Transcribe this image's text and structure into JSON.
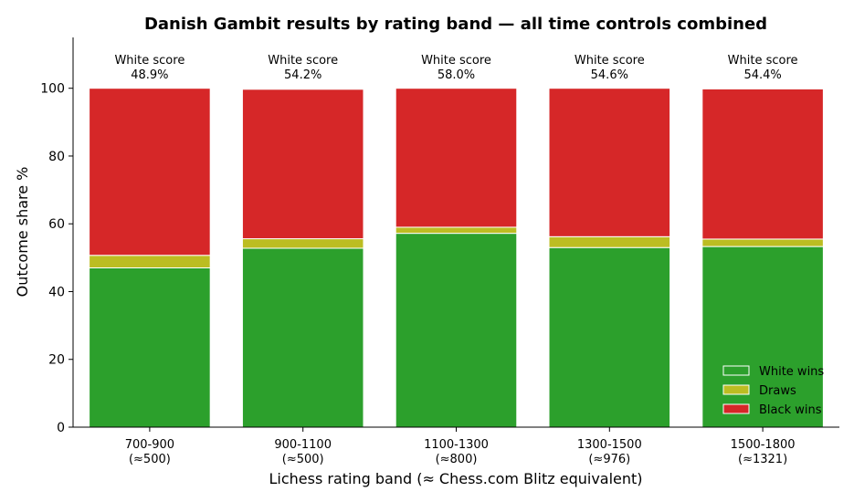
{
  "chart_data": {
    "type": "bar",
    "stacked": true,
    "title": "Danish Gambit results by rating band — all time controls combined",
    "xlabel": "Lichess rating band  (≈ Chess.com Blitz equivalent)",
    "ylabel": "Outcome share %",
    "ylim": [
      0,
      115
    ],
    "yticks": [
      0,
      20,
      40,
      60,
      80,
      100
    ],
    "grid": false,
    "legend_position": "bottom-right",
    "categories": [
      {
        "band": "700-900",
        "equiv": "(≈500)"
      },
      {
        "band": "900-1100",
        "equiv": "(≈500)"
      },
      {
        "band": "1100-1300",
        "equiv": "(≈800)"
      },
      {
        "band": "1300-1500",
        "equiv": "(≈976)"
      },
      {
        "band": "1500-1800",
        "equiv": "(≈1321)"
      }
    ],
    "series": [
      {
        "name": "White wins",
        "color": "#2ca02c",
        "values": [
          47.0,
          52.8,
          57.2,
          53.0,
          53.3
        ]
      },
      {
        "name": "Draws",
        "color": "#bcbd22",
        "values": [
          3.7,
          2.8,
          1.8,
          3.2,
          2.2
        ]
      },
      {
        "name": "Black wins",
        "color": "#d62728",
        "values": [
          49.3,
          44.1,
          41.0,
          43.8,
          44.3
        ]
      }
    ],
    "annotations": [
      {
        "label": "White score",
        "value": "48.9%"
      },
      {
        "label": "White score",
        "value": "54.2%"
      },
      {
        "label": "White score",
        "value": "58.0%"
      },
      {
        "label": "White score",
        "value": "54.6%"
      },
      {
        "label": "White score",
        "value": "54.4%"
      }
    ]
  }
}
